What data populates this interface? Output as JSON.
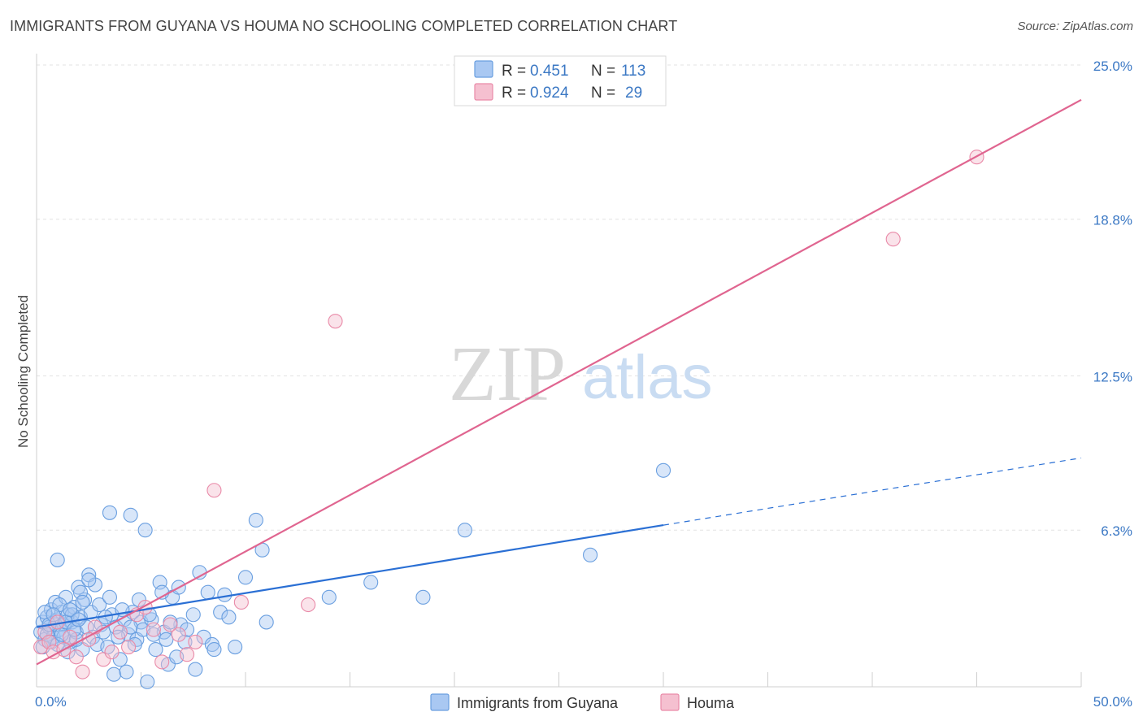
{
  "header": {
    "title": "IMMIGRANTS FROM GUYANA VS HOUMA NO SCHOOLING COMPLETED CORRELATION CHART",
    "source": "Source: ZipAtlas.com"
  },
  "watermark": {
    "zip": "ZIP",
    "atlas": "atlas"
  },
  "legend": {
    "r_label": "R =",
    "n_label": "N =",
    "rows": [
      {
        "r": "0.451",
        "n": "113"
      },
      {
        "r": "0.924",
        "n": "29"
      }
    ]
  },
  "chart_data": {
    "type": "scatter",
    "title": "IMMIGRANTS FROM GUYANA VS HOUMA NO SCHOOLING COMPLETED CORRELATION CHART",
    "xlabel": "",
    "ylabel": "No Schooling Completed",
    "xlim": [
      0,
      50
    ],
    "ylim": [
      0,
      25
    ],
    "x_tick_labels": [
      "0.0%",
      "50.0%"
    ],
    "y_ticks": [
      6.3,
      12.5,
      18.8,
      25.0
    ],
    "y_tick_labels": [
      "6.3%",
      "12.5%",
      "18.8%",
      "25.0%"
    ],
    "grid": true,
    "legend_position": "top-center",
    "series": [
      {
        "name": "Immigrants from Guyana",
        "color": "#6a9fe0",
        "fill": "#a9c8f2",
        "r": 0.451,
        "n": 113,
        "trend": {
          "x0": 0,
          "y0": 2.4,
          "x1": 30,
          "y1": 6.5,
          "dash_x1": 50,
          "dash_y1": 9.2
        },
        "points": [
          [
            0.2,
            2.2
          ],
          [
            0.3,
            2.6
          ],
          [
            0.4,
            1.9
          ],
          [
            0.5,
            2.8
          ],
          [
            0.6,
            2.4
          ],
          [
            0.7,
            3.1
          ],
          [
            0.8,
            2.0
          ],
          [
            0.9,
            3.4
          ],
          [
            1.0,
            2.7
          ],
          [
            1.1,
            2.3
          ],
          [
            1.2,
            3.0
          ],
          [
            1.3,
            2.5
          ],
          [
            1.4,
            3.6
          ],
          [
            1.5,
            2.9
          ],
          [
            1.6,
            1.8
          ],
          [
            1.7,
            2.6
          ],
          [
            1.8,
            3.2
          ],
          [
            1.9,
            2.2
          ],
          [
            2.0,
            4.0
          ],
          [
            2.1,
            2.8
          ],
          [
            2.2,
            1.5
          ],
          [
            2.3,
            3.5
          ],
          [
            2.4,
            2.4
          ],
          [
            2.5,
            4.5
          ],
          [
            2.6,
            3.0
          ],
          [
            2.7,
            2.0
          ],
          [
            2.8,
            4.1
          ],
          [
            2.9,
            1.7
          ],
          [
            3.0,
            3.3
          ],
          [
            3.1,
            2.5
          ],
          [
            0.3,
            1.6
          ],
          [
            0.5,
            2.1
          ],
          [
            0.7,
            1.8
          ],
          [
            0.9,
            2.5
          ],
          [
            1.1,
            3.3
          ],
          [
            1.3,
            2.0
          ],
          [
            1.5,
            1.4
          ],
          [
            1.7,
            2.9
          ],
          [
            1.9,
            1.9
          ],
          [
            2.1,
            3.8
          ],
          [
            0.4,
            3.0
          ],
          [
            0.6,
            2.5
          ],
          [
            0.8,
            2.9
          ],
          [
            1.0,
            1.7
          ],
          [
            1.2,
            2.1
          ],
          [
            1.4,
            2.6
          ],
          [
            1.6,
            3.1
          ],
          [
            1.8,
            2.3
          ],
          [
            2.0,
            2.7
          ],
          [
            2.2,
            3.4
          ],
          [
            3.2,
            2.2
          ],
          [
            3.4,
            1.6
          ],
          [
            3.6,
            2.9
          ],
          [
            3.8,
            2.4
          ],
          [
            4.0,
            1.1
          ],
          [
            4.2,
            2.7
          ],
          [
            4.4,
            2.1
          ],
          [
            4.6,
            3.0
          ],
          [
            4.8,
            1.9
          ],
          [
            5.0,
            2.6
          ],
          [
            3.3,
            2.8
          ],
          [
            3.5,
            3.6
          ],
          [
            3.7,
            0.5
          ],
          [
            3.9,
            2.0
          ],
          [
            4.1,
            3.1
          ],
          [
            4.3,
            0.6
          ],
          [
            4.5,
            2.4
          ],
          [
            4.7,
            1.7
          ],
          [
            4.9,
            3.5
          ],
          [
            5.1,
            2.3
          ],
          [
            5.3,
            0.2
          ],
          [
            5.5,
            2.7
          ],
          [
            5.7,
            1.5
          ],
          [
            5.9,
            4.2
          ],
          [
            6.1,
            2.2
          ],
          [
            6.3,
            0.9
          ],
          [
            6.5,
            3.6
          ],
          [
            6.7,
            1.2
          ],
          [
            6.9,
            2.5
          ],
          [
            7.1,
            1.8
          ],
          [
            5.4,
            2.9
          ],
          [
            5.6,
            2.1
          ],
          [
            6.0,
            3.8
          ],
          [
            6.4,
            2.6
          ],
          [
            6.8,
            4.0
          ],
          [
            7.2,
            2.3
          ],
          [
            7.6,
            0.7
          ],
          [
            8.0,
            2.0
          ],
          [
            8.4,
            1.7
          ],
          [
            8.8,
            3.0
          ],
          [
            1.0,
            5.1
          ],
          [
            2.5,
            4.3
          ],
          [
            3.5,
            7.0
          ],
          [
            4.5,
            6.9
          ],
          [
            5.2,
            6.3
          ],
          [
            6.2,
            1.9
          ],
          [
            7.5,
            2.9
          ],
          [
            8.2,
            3.8
          ],
          [
            9.0,
            3.7
          ],
          [
            9.5,
            1.6
          ],
          [
            7.8,
            4.6
          ],
          [
            8.5,
            1.5
          ],
          [
            9.2,
            2.8
          ],
          [
            10.0,
            4.4
          ],
          [
            10.5,
            6.7
          ],
          [
            10.8,
            5.5
          ],
          [
            11.0,
            2.6
          ],
          [
            14.0,
            3.6
          ],
          [
            16.0,
            4.2
          ],
          [
            18.5,
            3.6
          ],
          [
            20.5,
            6.3
          ],
          [
            26.5,
            5.3
          ],
          [
            30.0,
            8.7
          ]
        ]
      },
      {
        "name": "Houma",
        "color": "#e98aa8",
        "fill": "#f5c0d0",
        "r": 0.924,
        "n": 29,
        "trend": {
          "x0": 0,
          "y0": 0.9,
          "x1": 50,
          "y1": 23.6
        },
        "points": [
          [
            0.2,
            1.6
          ],
          [
            0.4,
            2.2
          ],
          [
            0.6,
            1.8
          ],
          [
            0.8,
            1.4
          ],
          [
            1.0,
            2.6
          ],
          [
            1.3,
            1.5
          ],
          [
            1.6,
            2.0
          ],
          [
            1.9,
            1.2
          ],
          [
            2.2,
            0.6
          ],
          [
            2.5,
            1.9
          ],
          [
            2.8,
            2.4
          ],
          [
            3.2,
            1.1
          ],
          [
            3.6,
            1.4
          ],
          [
            4.0,
            2.2
          ],
          [
            4.4,
            1.6
          ],
          [
            4.8,
            2.9
          ],
          [
            5.2,
            3.2
          ],
          [
            5.6,
            2.3
          ],
          [
            6.0,
            1.0
          ],
          [
            6.4,
            2.5
          ],
          [
            6.8,
            2.1
          ],
          [
            7.2,
            1.3
          ],
          [
            7.6,
            1.8
          ],
          [
            8.5,
            7.9
          ],
          [
            9.8,
            3.4
          ],
          [
            13.0,
            3.3
          ],
          [
            14.3,
            14.7
          ],
          [
            41.0,
            18.0
          ],
          [
            45.0,
            21.3
          ]
        ]
      }
    ]
  }
}
